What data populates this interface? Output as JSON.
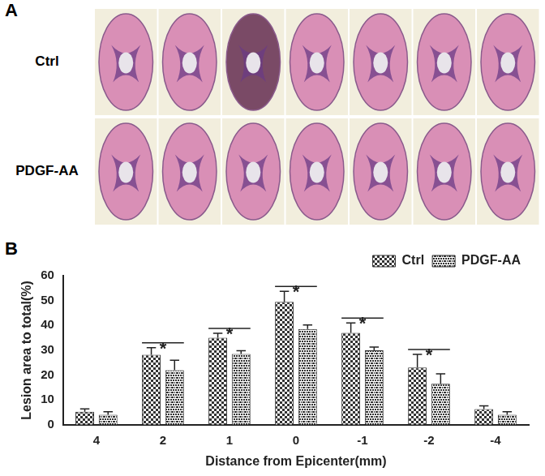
{
  "panel_a": {
    "label": "A",
    "rows": [
      "Ctrl",
      "PDGF-AA"
    ]
  },
  "chart_data": {
    "panel_label": "B",
    "type": "bar",
    "categories": [
      "4",
      "2",
      "1",
      "0",
      "-1",
      "-2",
      "-4"
    ],
    "x_label": "Distance from Epicenter(mm)",
    "y_label": "Lesion area to total(%)",
    "ylim": [
      0,
      60
    ],
    "yticks": [
      0,
      10,
      20,
      30,
      40,
      50,
      60
    ],
    "grid": false,
    "legend": "upper right",
    "series": [
      {
        "name": "Ctrl",
        "color": "#333333",
        "values": [
          5.2,
          28.2,
          35,
          49.5,
          37,
          23,
          6.3
        ],
        "errors": [
          1.2,
          2.8,
          1.8,
          4.2,
          4,
          5.3,
          1.3
        ]
      },
      {
        "name": "PDGF-AA",
        "color": "#333333",
        "values": [
          4,
          22,
          28.5,
          38.5,
          30,
          16.5,
          4
        ],
        "errors": [
          1.2,
          4,
          1.3,
          1.7,
          1.3,
          4,
          1.2
        ]
      }
    ],
    "annotations": [
      {
        "category": "2",
        "text": "*"
      },
      {
        "category": "1",
        "text": "*"
      },
      {
        "category": "0",
        "text": "*"
      },
      {
        "category": "-1",
        "text": "*"
      },
      {
        "category": "-2",
        "text": "*"
      }
    ]
  }
}
